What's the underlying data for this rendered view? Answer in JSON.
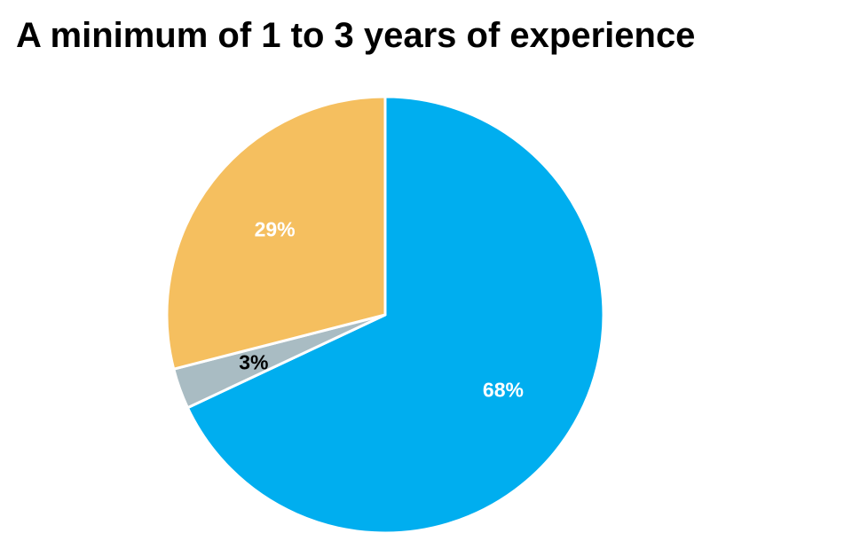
{
  "chart_data": {
    "type": "pie",
    "title": "A minimum of 1 to 3 years of experience",
    "start_angle_deg": 0,
    "direction": "clockwise",
    "legend": "none",
    "slices": [
      {
        "label": "68%",
        "value": 68,
        "color": "#00AEEF",
        "label_color": "#FFFFFF"
      },
      {
        "label": "3%",
        "value": 3,
        "color": "#A9BCC3",
        "label_color": "#000000"
      },
      {
        "label": "29%",
        "value": 29,
        "color": "#F5BF5F",
        "label_color": "#FFFFFF"
      }
    ]
  }
}
